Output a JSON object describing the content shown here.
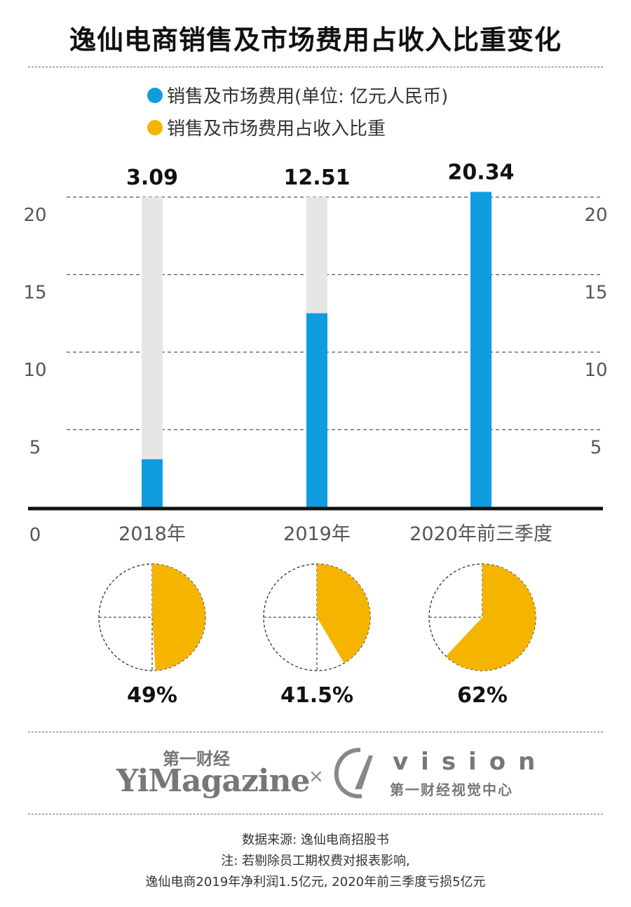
{
  "title": "逸仙电商销售及市场费用占收入比重变化",
  "legend": [
    {
      "label": "销售及市场费用(单位: 亿元人民币)",
      "color": "#0f9de0"
    },
    {
      "label": "销售及市场费用占收入比重",
      "color": "#f5b400"
    }
  ],
  "colors": {
    "bar": "#0f9de0",
    "bar_bg": "#e6e6e6",
    "pie": "#f5b400",
    "axis": "#111111"
  },
  "chart_data": [
    {
      "type": "bar",
      "categories": [
        "2018年",
        "2019年",
        "2020年前三季度"
      ],
      "values": [
        3.09,
        12.51,
        20.34
      ],
      "data_labels": [
        "3.09",
        "12.51",
        "20.34"
      ],
      "ylim": [
        0,
        20
      ],
      "yticks": [
        "0",
        "5",
        "10",
        "15",
        "20"
      ],
      "grid": true
    },
    {
      "type": "pie",
      "categories": [
        "2018年",
        "2019年",
        "2020年前三季度"
      ],
      "values": [
        49,
        41.5,
        62
      ],
      "data_labels": [
        "49%",
        "41.5%",
        "62%"
      ]
    }
  ],
  "branding": {
    "cn_name": "第一财经",
    "en_name": "YiMagazine",
    "times": "×",
    "vision_word": "vision",
    "vision_sub": "第一财经视觉中心"
  },
  "footer": {
    "source": "数据来源: 逸仙电商招股书",
    "note1": "注: 若剔除员工期权费对报表影响,",
    "note2": "逸仙电商2019年净利润1.5亿元, 2020年前三季度亏损5亿元"
  }
}
